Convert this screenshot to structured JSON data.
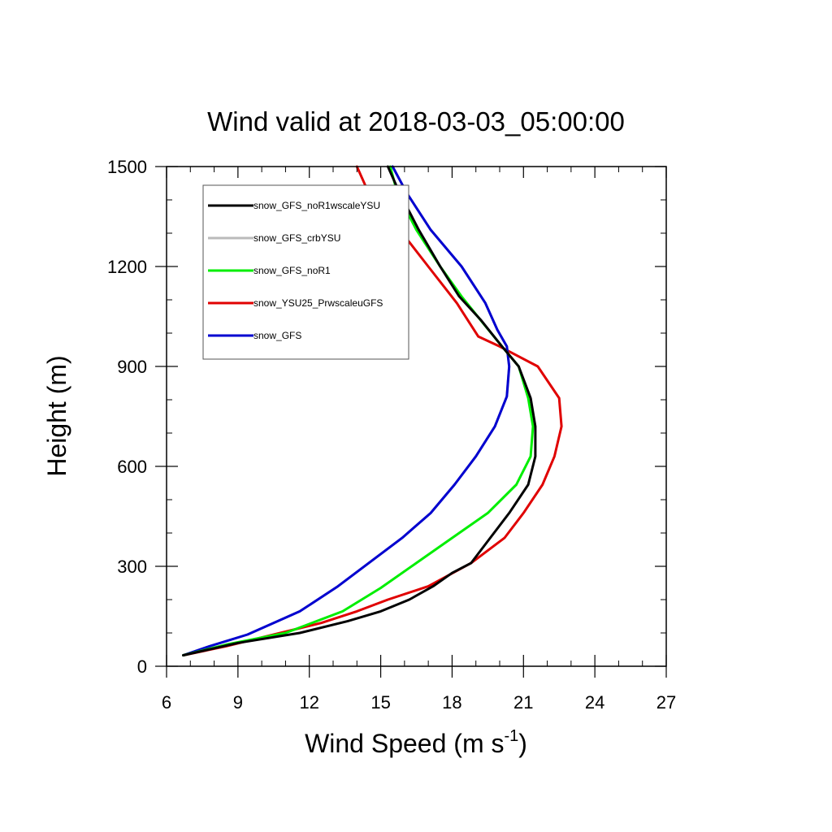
{
  "chart_data": {
    "type": "line",
    "title": "Wind valid at 2018-03-03_05:00:00",
    "xlabel": "Wind Speed (m s",
    "xlabel_superscript": "-1",
    "xlabel_suffix": ")",
    "ylabel": "Height (m)",
    "xlim": [
      6,
      27
    ],
    "ylim": [
      0,
      1500
    ],
    "xticks": [
      6,
      9,
      12,
      15,
      18,
      21,
      24,
      27
    ],
    "yticks": [
      0,
      300,
      600,
      900,
      1200,
      1500
    ],
    "x_minor_step": 1,
    "y_minor_step": 100,
    "grid": false,
    "legend_position": "top-left",
    "series": [
      {
        "name": "snow_YSU25_PrwscaleuGFS",
        "color": "#e00000",
        "points": [
          [
            6.7,
            33
          ],
          [
            8.5,
            60
          ],
          [
            10.5,
            95
          ],
          [
            12.5,
            130
          ],
          [
            14.0,
            165
          ],
          [
            15.3,
            200
          ],
          [
            17.0,
            240
          ],
          [
            18.8,
            310
          ],
          [
            20.2,
            385
          ],
          [
            21.0,
            460
          ],
          [
            21.8,
            545
          ],
          [
            22.3,
            630
          ],
          [
            22.6,
            720
          ],
          [
            22.5,
            805
          ],
          [
            21.6,
            900
          ],
          [
            20.0,
            960
          ],
          [
            19.1,
            990
          ],
          [
            18.2,
            1090
          ],
          [
            17.0,
            1200
          ],
          [
            15.8,
            1310
          ],
          [
            14.5,
            1420
          ],
          [
            14.0,
            1500
          ]
        ]
      },
      {
        "name": "snow_GFS_crbYSU",
        "color": "#bbbbbb",
        "points": [
          [
            6.7,
            33
          ],
          [
            7.8,
            60
          ],
          [
            9.4,
            95
          ],
          [
            11.6,
            165
          ],
          [
            13.2,
            240
          ],
          [
            14.5,
            310
          ],
          [
            15.9,
            385
          ],
          [
            17.1,
            460
          ],
          [
            18.1,
            545
          ],
          [
            19.0,
            630
          ],
          [
            19.8,
            720
          ],
          [
            20.3,
            810
          ],
          [
            20.4,
            900
          ],
          [
            20.3,
            960
          ],
          [
            19.9,
            1010
          ],
          [
            19.4,
            1090
          ],
          [
            18.4,
            1200
          ],
          [
            17.1,
            1310
          ],
          [
            16.1,
            1420
          ],
          [
            15.5,
            1500
          ]
        ]
      },
      {
        "name": "snow_GFS",
        "color": "#0000d0",
        "points": [
          [
            6.7,
            33
          ],
          [
            7.8,
            60
          ],
          [
            9.4,
            95
          ],
          [
            11.6,
            165
          ],
          [
            13.2,
            240
          ],
          [
            14.5,
            310
          ],
          [
            15.9,
            385
          ],
          [
            17.1,
            460
          ],
          [
            18.1,
            545
          ],
          [
            19.0,
            630
          ],
          [
            19.8,
            720
          ],
          [
            20.3,
            810
          ],
          [
            20.4,
            900
          ],
          [
            20.3,
            960
          ],
          [
            19.9,
            1010
          ],
          [
            19.4,
            1090
          ],
          [
            18.4,
            1200
          ],
          [
            17.1,
            1310
          ],
          [
            16.1,
            1420
          ],
          [
            15.5,
            1500
          ]
        ]
      },
      {
        "name": "snow_GFS_noR1",
        "color": "#00ee00",
        "points": [
          [
            6.7,
            33
          ],
          [
            8.5,
            65
          ],
          [
            11.0,
            100
          ],
          [
            13.4,
            165
          ],
          [
            15.0,
            235
          ],
          [
            16.5,
            310
          ],
          [
            18.0,
            385
          ],
          [
            19.5,
            460
          ],
          [
            20.7,
            545
          ],
          [
            21.3,
            630
          ],
          [
            21.4,
            720
          ],
          [
            21.2,
            805
          ],
          [
            20.8,
            900
          ],
          [
            20.1,
            960
          ],
          [
            19.3,
            1030
          ],
          [
            18.4,
            1110
          ],
          [
            17.5,
            1200
          ],
          [
            16.5,
            1310
          ],
          [
            15.7,
            1420
          ],
          [
            15.4,
            1500
          ]
        ]
      },
      {
        "name": "snow_GFS_noR1wscaleYSU",
        "color": "#000000",
        "points": [
          [
            6.7,
            33
          ],
          [
            9.0,
            70
          ],
          [
            11.6,
            100
          ],
          [
            13.6,
            135
          ],
          [
            15.0,
            165
          ],
          [
            16.2,
            200
          ],
          [
            17.2,
            240
          ],
          [
            18.0,
            280
          ],
          [
            18.8,
            310
          ],
          [
            19.6,
            385
          ],
          [
            20.4,
            460
          ],
          [
            21.2,
            545
          ],
          [
            21.5,
            630
          ],
          [
            21.5,
            720
          ],
          [
            21.3,
            805
          ],
          [
            20.8,
            900
          ],
          [
            20.1,
            960
          ],
          [
            19.2,
            1040
          ],
          [
            18.3,
            1110
          ],
          [
            17.5,
            1200
          ],
          [
            16.6,
            1310
          ],
          [
            15.8,
            1420
          ],
          [
            15.3,
            1500
          ]
        ]
      }
    ],
    "legend_order": [
      "snow_GFS_noR1wscaleYSU",
      "snow_GFS_crbYSU",
      "snow_GFS_noR1",
      "snow_YSU25_PrwscaleuGFS",
      "snow_GFS"
    ]
  }
}
